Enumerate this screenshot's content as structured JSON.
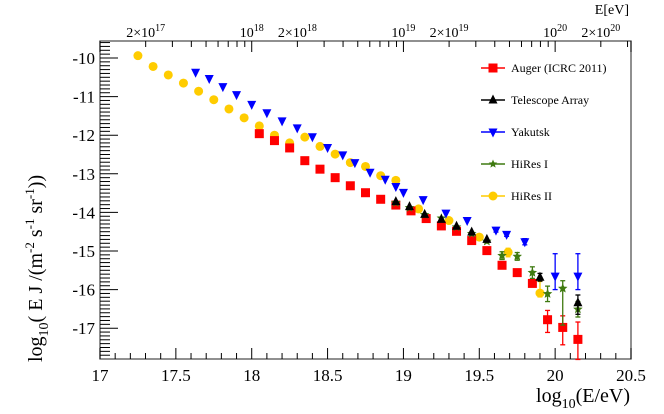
{
  "chart_data": {
    "type": "scatter",
    "title": "",
    "xlabel": "log10(E/eV)",
    "ylabel": "log10( E J /(m^-2 s^-1 sr^-1))",
    "top_axis_label": "E[eV]",
    "xlim": [
      17,
      20.5
    ],
    "ylim": [
      -17.8,
      -9.56
    ],
    "x_ticks": [
      17,
      17.5,
      18,
      18.5,
      19,
      19.5,
      20,
      20.5
    ],
    "x_tick_labels": [
      "17",
      "17.5",
      "18",
      "18.5",
      "19",
      "19.5",
      "20",
      "20.5"
    ],
    "y_ticks": [
      -10,
      -11,
      -12,
      -13,
      -14,
      -15,
      -16,
      -17
    ],
    "y_tick_labels": [
      "-10",
      "-11",
      "-12",
      "-13",
      "-14",
      "-15",
      "-16",
      "-17"
    ],
    "top_ticks": [
      {
        "label": "2×10^17",
        "base": "2×10",
        "exp": "17",
        "logE": 17.301
      },
      {
        "label": "10^18",
        "base": "10",
        "exp": "18",
        "logE": 18.0
      },
      {
        "label": "2×10^18",
        "base": "2×10",
        "exp": "18",
        "logE": 18.301
      },
      {
        "label": "10^19",
        "base": "10",
        "exp": "19",
        "logE": 19.0
      },
      {
        "label": "2×10^19",
        "base": "2×10",
        "exp": "19",
        "logE": 19.301
      },
      {
        "label": "10^20",
        "base": "10",
        "exp": "20",
        "logE": 20.0
      },
      {
        "label": "2×10^20",
        "base": "2×10",
        "exp": "20",
        "logE": 20.301
      }
    ],
    "grid": false,
    "legend_position": "upper right",
    "series": [
      {
        "name": "Auger (ICRC 2011)",
        "color": "#ff0000",
        "marker": "square",
        "x": [
          18.05,
          18.15,
          18.25,
          18.35,
          18.45,
          18.55,
          18.65,
          18.75,
          18.85,
          18.95,
          19.05,
          19.15,
          19.25,
          19.35,
          19.45,
          19.55,
          19.65,
          19.75,
          19.85,
          19.95,
          20.05,
          20.15
        ],
        "y": [
          -11.96,
          -12.14,
          -12.33,
          -12.66,
          -12.88,
          -13.1,
          -13.31,
          -13.49,
          -13.66,
          -13.81,
          -13.96,
          -14.16,
          -14.35,
          -14.49,
          -14.73,
          -14.99,
          -15.37,
          -15.56,
          -15.84,
          -16.78,
          -16.98,
          -17.29
        ],
        "err_low": [
          0,
          0,
          0,
          0,
          0,
          0,
          0,
          0,
          0,
          0,
          0,
          0,
          0,
          0,
          0,
          0,
          0,
          0,
          0.05,
          0.33,
          0.45,
          0.52
        ],
        "err_high": [
          0,
          0,
          0,
          0,
          0,
          0,
          0,
          0,
          0,
          0,
          0,
          0,
          0,
          0,
          0,
          0,
          0,
          0,
          0.05,
          0.24,
          0.3,
          0.45
        ]
      },
      {
        "name": "Telescope Array",
        "color": "#000000",
        "marker": "triangle-up",
        "x": [
          18.95,
          19.04,
          19.14,
          19.25,
          19.35,
          19.45,
          19.55,
          19.9,
          20.15
        ],
        "y": [
          -13.72,
          -13.85,
          -14.05,
          -14.18,
          -14.36,
          -14.51,
          -14.7,
          -15.68,
          -16.34
        ],
        "err_low": [
          0,
          0,
          0,
          0,
          0,
          0,
          0,
          0.1,
          0.3
        ],
        "err_high": [
          0,
          0,
          0,
          0,
          0,
          0,
          0,
          0.1,
          0.2
        ]
      },
      {
        "name": "Yakutsk",
        "color": "#0000ff",
        "marker": "triangle-down",
        "x": [
          17.63,
          17.72,
          17.81,
          17.9,
          18.0,
          18.1,
          18.2,
          18.3,
          18.4,
          18.5,
          18.6,
          18.68,
          18.78,
          18.88,
          18.95,
          19.0,
          19.13,
          19.28,
          19.42,
          19.61,
          19.68,
          19.8,
          20.0,
          20.15
        ],
        "y": [
          -10.37,
          -10.53,
          -10.74,
          -10.95,
          -11.2,
          -11.42,
          -11.63,
          -11.81,
          -12.04,
          -12.32,
          -12.51,
          -12.71,
          -12.96,
          -13.14,
          -13.33,
          -13.48,
          -13.67,
          -14.02,
          -14.21,
          -14.46,
          -14.57,
          -14.76,
          -15.65,
          -15.65
        ],
        "err_low": [
          0,
          0,
          0,
          0,
          0,
          0,
          0,
          0,
          0,
          0,
          0,
          0,
          0,
          0,
          0,
          0,
          0,
          0,
          0,
          0.05,
          0.05,
          0.08,
          0.35,
          0.35
        ],
        "err_high": [
          0,
          0,
          0,
          0,
          0,
          0,
          0,
          0,
          0,
          0,
          0,
          0,
          0,
          0,
          0,
          0,
          0,
          0,
          0,
          0.05,
          0.05,
          0.08,
          0.58,
          0.58
        ]
      },
      {
        "name": "HiRes I",
        "color": "#3f7a10",
        "marker": "star",
        "x": [
          18.95,
          19.04,
          19.14,
          19.25,
          19.35,
          19.45,
          19.55,
          19.65,
          19.75,
          19.85,
          19.95,
          20.05,
          20.15
        ],
        "y": [
          -13.75,
          -13.88,
          -14.06,
          -14.15,
          -14.38,
          -14.55,
          -14.75,
          -15.12,
          -15.14,
          -15.56,
          -16.11,
          -15.97,
          -16.51
        ],
        "err_low": [
          0,
          0,
          0,
          0,
          0,
          0,
          0,
          0.1,
          0.1,
          0.15,
          0.2,
          0.95,
          0.2
        ],
        "err_high": [
          0,
          0,
          0,
          0,
          0,
          0,
          0,
          0.1,
          0.1,
          0.15,
          0.2,
          0.2,
          0.2
        ]
      },
      {
        "name": "HiRes II",
        "color": "#ffcc00",
        "marker": "circle",
        "x": [
          17.25,
          17.35,
          17.45,
          17.55,
          17.65,
          17.75,
          17.85,
          17.95,
          18.05,
          18.15,
          18.25,
          18.35,
          18.45,
          18.55,
          18.65,
          18.75,
          18.85,
          18.95,
          19.1,
          19.3,
          19.5,
          19.69,
          19.9
        ],
        "y": [
          -9.94,
          -10.22,
          -10.44,
          -10.65,
          -10.86,
          -11.08,
          -11.32,
          -11.55,
          -11.76,
          -12.0,
          -12.2,
          -12.05,
          -12.29,
          -12.49,
          -12.71,
          -12.81,
          -13.05,
          -13.17,
          -13.91,
          -14.21,
          -14.64,
          -15.03,
          -16.09
        ],
        "err_low": [
          0.05,
          0,
          0,
          0,
          0,
          0,
          0,
          0,
          0,
          0,
          0,
          0,
          0,
          0,
          0,
          0,
          0,
          0,
          0,
          0,
          0,
          0.12,
          0.1
        ],
        "err_high": [
          0.05,
          0,
          0,
          0,
          0,
          0,
          0,
          0,
          0,
          0,
          0,
          0,
          0,
          0,
          0,
          0,
          0,
          0,
          0,
          0,
          0,
          0.1,
          0.3
        ]
      }
    ]
  },
  "labels": {
    "xlabel_prefix": "log",
    "xlabel_sub": "10",
    "xlabel_suffix": "(E/eV)",
    "ylabel_prefix": "log",
    "ylabel_sub": "10",
    "ylabel_mid": "( E J /(m",
    "ylabel_exp1": "-2",
    "ylabel_mid2": "  s",
    "ylabel_exp2": "-1",
    "ylabel_mid3": " sr",
    "ylabel_exp3": "-1",
    "ylabel_suffix": "))",
    "top_axis_label": "E[eV]"
  }
}
